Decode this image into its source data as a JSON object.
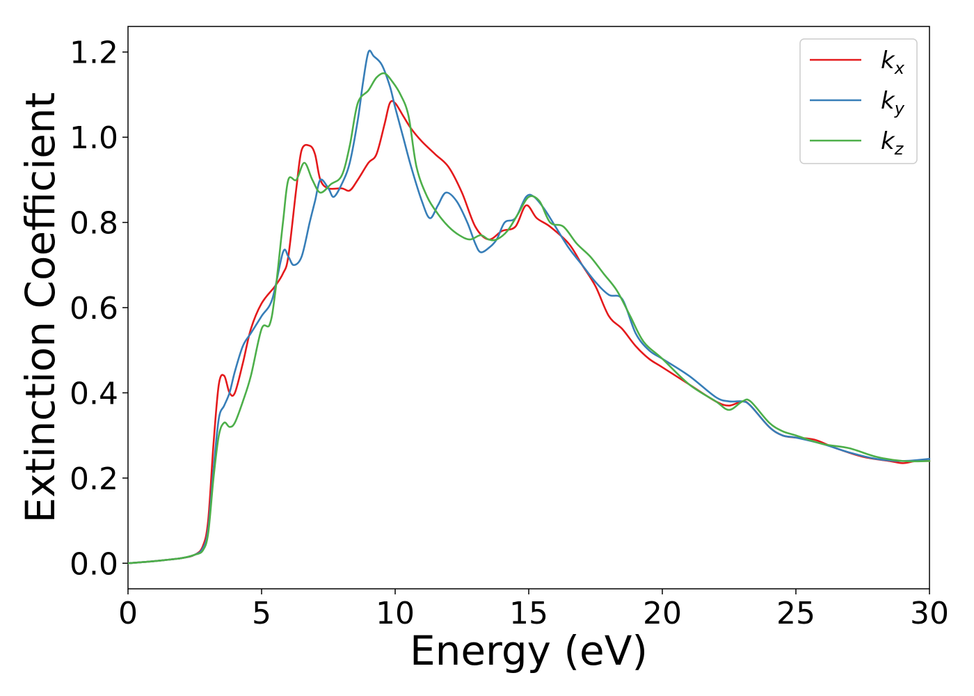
{
  "chart_data": {
    "type": "line",
    "xlabel": "Energy (eV)",
    "ylabel": "Extinction Coefficient",
    "xlim": [
      0,
      30
    ],
    "ylim": [
      -0.06,
      1.26
    ],
    "xticks": [
      0,
      5,
      10,
      15,
      20,
      25,
      30
    ],
    "yticks": [
      0.0,
      0.2,
      0.4,
      0.6,
      0.8,
      1.0,
      1.2
    ],
    "xtick_labels": [
      "0",
      "5",
      "10",
      "15",
      "20",
      "25",
      "30"
    ],
    "ytick_labels": [
      "0.0",
      "0.2",
      "0.4",
      "0.6",
      "0.8",
      "1.0",
      "1.2"
    ],
    "grid": false,
    "legend_position": "top-right",
    "series": [
      {
        "name": "kx",
        "base": "k",
        "sub": "x",
        "color": "#e41a1c",
        "x": [
          0,
          1,
          2,
          2.5,
          2.8,
          3.0,
          3.2,
          3.4,
          3.6,
          3.8,
          4.0,
          4.3,
          4.6,
          5.0,
          5.5,
          5.8,
          6.0,
          6.3,
          6.5,
          6.8,
          7.0,
          7.2,
          7.5,
          8.0,
          8.3,
          8.6,
          9.0,
          9.3,
          9.6,
          9.8,
          10.0,
          10.3,
          10.6,
          11.0,
          11.5,
          12.0,
          12.5,
          13.0,
          13.5,
          14.0,
          14.5,
          14.9,
          15.3,
          15.8,
          16.5,
          17.0,
          17.5,
          18.0,
          18.5,
          19.0,
          19.5,
          20.0,
          21.0,
          22.0,
          22.5,
          23.0,
          23.3,
          24.0,
          24.5,
          25.0,
          25.7,
          26.5,
          27.5,
          28.5,
          29.0,
          29.5,
          30
        ],
        "y": [
          0.0,
          0.005,
          0.012,
          0.02,
          0.04,
          0.1,
          0.28,
          0.42,
          0.44,
          0.4,
          0.4,
          0.47,
          0.55,
          0.61,
          0.65,
          0.68,
          0.72,
          0.88,
          0.97,
          0.98,
          0.96,
          0.9,
          0.88,
          0.88,
          0.875,
          0.9,
          0.94,
          0.96,
          1.03,
          1.08,
          1.08,
          1.05,
          1.02,
          0.99,
          0.96,
          0.93,
          0.87,
          0.79,
          0.76,
          0.78,
          0.79,
          0.84,
          0.81,
          0.79,
          0.75,
          0.7,
          0.65,
          0.58,
          0.55,
          0.51,
          0.48,
          0.46,
          0.42,
          0.38,
          0.37,
          0.38,
          0.37,
          0.32,
          0.3,
          0.295,
          0.29,
          0.27,
          0.25,
          0.24,
          0.235,
          0.24,
          0.24
        ]
      },
      {
        "name": "ky",
        "base": "k",
        "sub": "y",
        "color": "#377eb8",
        "x": [
          0,
          1,
          2,
          2.5,
          2.8,
          3.0,
          3.2,
          3.4,
          3.6,
          3.8,
          4.0,
          4.3,
          4.6,
          5.0,
          5.4,
          5.8,
          6.0,
          6.2,
          6.5,
          6.8,
          7.0,
          7.2,
          7.5,
          7.7,
          8.0,
          8.3,
          8.6,
          8.8,
          9.0,
          9.2,
          9.5,
          9.8,
          10.0,
          10.3,
          10.6,
          11.0,
          11.3,
          11.6,
          11.9,
          12.3,
          12.7,
          13.0,
          13.2,
          13.5,
          13.8,
          14.1,
          14.5,
          14.9,
          15.2,
          15.6,
          16.0,
          16.5,
          17.0,
          17.5,
          18.0,
          18.5,
          19.0,
          19.5,
          20.0,
          21.0,
          22.0,
          22.5,
          23.0,
          23.3,
          24.0,
          24.5,
          25.0,
          26.0,
          27.0,
          28.0,
          29.0,
          30
        ],
        "y": [
          0.0,
          0.005,
          0.012,
          0.02,
          0.035,
          0.08,
          0.22,
          0.34,
          0.37,
          0.4,
          0.45,
          0.51,
          0.54,
          0.58,
          0.62,
          0.73,
          0.72,
          0.7,
          0.72,
          0.8,
          0.85,
          0.9,
          0.88,
          0.86,
          0.89,
          0.94,
          1.04,
          1.13,
          1.2,
          1.19,
          1.17,
          1.12,
          1.07,
          1.0,
          0.93,
          0.85,
          0.81,
          0.84,
          0.87,
          0.85,
          0.8,
          0.75,
          0.73,
          0.74,
          0.76,
          0.8,
          0.81,
          0.86,
          0.86,
          0.83,
          0.79,
          0.74,
          0.7,
          0.66,
          0.63,
          0.62,
          0.54,
          0.5,
          0.48,
          0.44,
          0.39,
          0.38,
          0.38,
          0.37,
          0.32,
          0.3,
          0.295,
          0.28,
          0.26,
          0.245,
          0.24,
          0.245
        ]
      },
      {
        "name": "kz",
        "base": "k",
        "sub": "z",
        "color": "#4daf4a",
        "x": [
          0,
          1,
          2,
          2.5,
          2.8,
          3.0,
          3.2,
          3.4,
          3.6,
          3.8,
          4.0,
          4.3,
          4.6,
          5.0,
          5.3,
          5.5,
          5.8,
          6.0,
          6.3,
          6.6,
          6.9,
          7.2,
          7.6,
          8.0,
          8.3,
          8.6,
          9.0,
          9.3,
          9.6,
          9.9,
          10.2,
          10.5,
          10.8,
          11.2,
          11.6,
          12.0,
          12.4,
          12.8,
          13.2,
          13.5,
          13.8,
          14.2,
          14.6,
          15.0,
          15.4,
          15.8,
          16.3,
          16.8,
          17.3,
          17.8,
          18.3,
          18.8,
          19.3,
          20.0,
          21.0,
          22.0,
          22.5,
          23.0,
          23.3,
          24.0,
          24.5,
          25.0,
          26.0,
          27.0,
          28.0,
          29.0,
          30
        ],
        "y": [
          0.0,
          0.005,
          0.012,
          0.02,
          0.03,
          0.07,
          0.2,
          0.3,
          0.33,
          0.32,
          0.33,
          0.38,
          0.44,
          0.55,
          0.56,
          0.63,
          0.8,
          0.9,
          0.9,
          0.94,
          0.9,
          0.87,
          0.89,
          0.91,
          0.98,
          1.08,
          1.11,
          1.14,
          1.15,
          1.13,
          1.1,
          1.05,
          0.93,
          0.86,
          0.82,
          0.79,
          0.77,
          0.76,
          0.77,
          0.76,
          0.76,
          0.78,
          0.82,
          0.86,
          0.85,
          0.8,
          0.79,
          0.75,
          0.72,
          0.68,
          0.64,
          0.58,
          0.52,
          0.48,
          0.42,
          0.38,
          0.36,
          0.38,
          0.38,
          0.33,
          0.31,
          0.3,
          0.28,
          0.27,
          0.25,
          0.24,
          0.24
        ]
      }
    ]
  }
}
